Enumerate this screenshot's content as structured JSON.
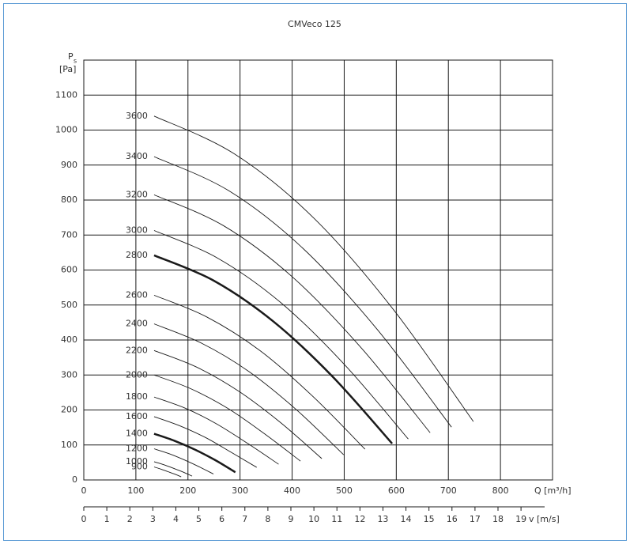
{
  "chart_data": {
    "type": "line",
    "title": "CMVeco 125",
    "xlabel": "Q [m³/h]",
    "x2label": "v [m/s]",
    "ylabel": "P",
    "ylabel_sub": "s",
    "yunit": "[Pa]",
    "xlim": [
      0,
      900
    ],
    "xticks": [
      0,
      100,
      200,
      300,
      400,
      500,
      600,
      700,
      800
    ],
    "x2lim": [
      0,
      20.37
    ],
    "x2ticks": [
      0,
      1,
      2,
      3,
      4,
      5,
      6,
      7,
      8,
      9,
      10,
      11,
      12,
      13,
      14,
      15,
      16,
      17,
      18,
      19
    ],
    "ylim": [
      0,
      1200
    ],
    "yticks": [
      0,
      100,
      200,
      300,
      400,
      500,
      600,
      700,
      800,
      900,
      1000,
      1100
    ],
    "grid": true,
    "color": "#1a1a1a",
    "series": [
      {
        "name": "900",
        "x": [
          135,
          148,
          161,
          174,
          187
        ],
        "values": [
          37,
          31,
          24,
          17,
          9
        ]
      },
      {
        "name": "1000",
        "x": [
          135,
          153,
          171,
          190,
          208
        ],
        "values": [
          52,
          44,
          34,
          23,
          11
        ]
      },
      {
        "name": "1200",
        "x": [
          135,
          164,
          192,
          221,
          249
        ],
        "values": [
          89,
          75,
          58,
          38,
          17
        ]
      },
      {
        "name": "1400",
        "x": [
          135,
          174,
          213,
          252,
          291
        ],
        "values": [
          132,
          112,
          87,
          57,
          22
        ],
        "bold": true
      },
      {
        "name": "1600",
        "x": [
          135,
          184,
          234,
          283,
          332
        ],
        "values": [
          181,
          155,
          121,
          79,
          36
        ]
      },
      {
        "name": "1800",
        "x": [
          135,
          195,
          254,
          314,
          374
        ],
        "values": [
          237,
          205,
          161,
          105,
          45
        ]
      },
      {
        "name": "2000",
        "x": [
          135,
          205,
          276,
          346,
          416
        ],
        "values": [
          300,
          261,
          205,
          133,
          54
        ]
      },
      {
        "name": "2200",
        "x": [
          135,
          216,
          296,
          377,
          457
        ],
        "values": [
          370,
          323,
          255,
          165,
          61
        ]
      },
      {
        "name": "2400",
        "x": [
          135,
          226,
          317,
          408,
          499
        ],
        "values": [
          446,
          391,
          310,
          201,
          72
        ]
      },
      {
        "name": "2600",
        "x": [
          135,
          236,
          338,
          439,
          540
        ],
        "values": [
          528,
          466,
          370,
          240,
          88
        ]
      },
      {
        "name": "2800",
        "x": [
          135,
          249,
          364,
          478,
          592
        ],
        "values": [
          642,
          570,
          453,
          295,
          104
        ],
        "bold": true
      },
      {
        "name": "3000",
        "x": [
          135,
          257,
          379,
          501,
          623
        ],
        "values": [
          713,
          634,
          506,
          329,
          117
        ]
      },
      {
        "name": "3200",
        "x": [
          135,
          268,
          400,
          533,
          665
        ],
        "values": [
          815,
          727,
          581,
          377,
          135
        ]
      },
      {
        "name": "3400",
        "x": [
          135,
          278,
          420,
          563,
          706
        ],
        "values": [
          924,
          827,
          663,
          431,
          151
        ]
      },
      {
        "name": "3600",
        "x": [
          135,
          288,
          442,
          595,
          748
        ],
        "values": [
          1040,
          933,
          748,
          486,
          167
        ]
      }
    ]
  }
}
